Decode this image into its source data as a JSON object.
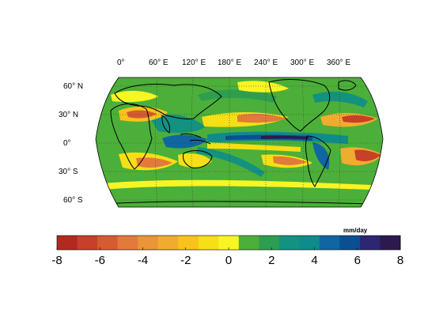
{
  "projection": "Robinson",
  "units": "mm/day",
  "longitude_labels": [
    "0°",
    "60° E",
    "120° E",
    "180° E",
    "240° E",
    "300° E",
    "360° E"
  ],
  "latitude_labels": [
    "60° N",
    "30° N",
    "0°",
    "30° S",
    "60° S"
  ],
  "colorbar": {
    "orientation": "horizontal",
    "min": -8,
    "max": 8,
    "tick_values": [
      -8,
      -6,
      -4,
      -2,
      0,
      2,
      4,
      6,
      8
    ],
    "tick_labels": [
      "-8",
      "-6",
      "-4",
      "-2",
      "0",
      "2",
      "4",
      "6",
      "8"
    ],
    "colors": [
      "#b22a1f",
      "#c6402a",
      "#d45c30",
      "#e27a3c",
      "#eb9438",
      "#f0ac2e",
      "#f7c31c",
      "#f6df14",
      "#f9f423",
      "#4caf39",
      "#2d9e4f",
      "#139181",
      "#0f8b8c",
      "#0f66a0",
      "#0b4f93",
      "#2c2770",
      "#2c1a4f"
    ]
  },
  "colors": {
    "background_field": "#4caf39",
    "coastline": "#000000",
    "graticule": "#333333"
  }
}
